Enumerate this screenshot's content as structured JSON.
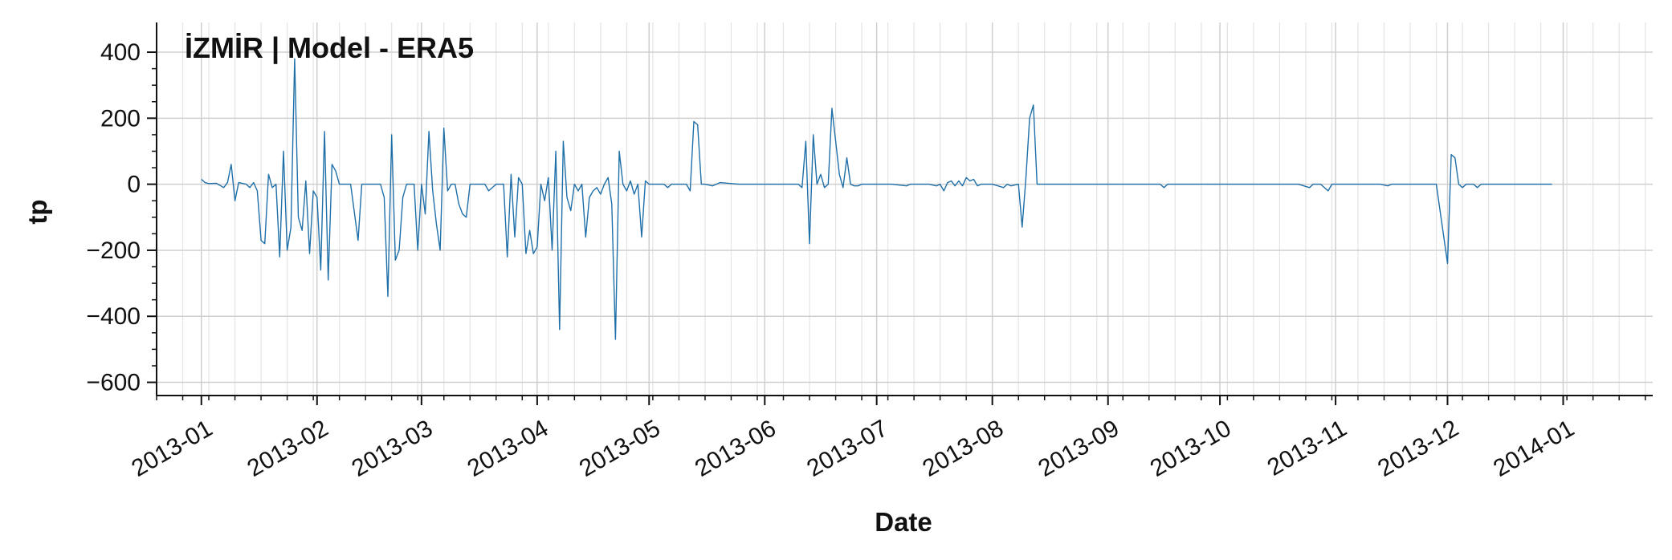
{
  "chart_data": {
    "type": "line",
    "title": "İZMİR | Model - ERA5",
    "xlabel": "Date",
    "ylabel": "tp",
    "x_axis_type": "date",
    "xlim": [
      "2012-12-20",
      "2014-01-25"
    ],
    "ylim": [
      -640,
      490
    ],
    "x_ticks": [
      "2013-01-01",
      "2013-02-01",
      "2013-03-01",
      "2013-04-01",
      "2013-05-01",
      "2013-06-01",
      "2013-07-01",
      "2013-08-01",
      "2013-09-01",
      "2013-10-01",
      "2013-11-01",
      "2013-12-01",
      "2014-01-01"
    ],
    "x_tick_labels": [
      "2013-01",
      "2013-02",
      "2013-03",
      "2013-04",
      "2013-05",
      "2013-06",
      "2013-07",
      "2013-08",
      "2013-09",
      "2013-10",
      "2013-11",
      "2013-12",
      "2014-01"
    ],
    "y_ticks": [
      400,
      200,
      0,
      -200,
      -400,
      -600
    ],
    "y_tick_labels": [
      "400",
      "200",
      "0",
      "−200",
      "−400",
      "−600"
    ],
    "grid": true,
    "series": [
      {
        "color": "#1f6fa8",
        "points": [
          [
            "2013-01-01",
            15
          ],
          [
            "2013-01-02",
            5
          ],
          [
            "2013-01-03",
            2
          ],
          [
            "2013-01-05",
            3
          ],
          [
            "2013-01-07",
            -10
          ],
          [
            "2013-01-08",
            5
          ],
          [
            "2013-01-09",
            60
          ],
          [
            "2013-01-10",
            -50
          ],
          [
            "2013-01-11",
            5
          ],
          [
            "2013-01-13",
            0
          ],
          [
            "2013-01-14",
            -10
          ],
          [
            "2013-01-15",
            5
          ],
          [
            "2013-01-16",
            -20
          ],
          [
            "2013-01-17",
            -170
          ],
          [
            "2013-01-18",
            -180
          ],
          [
            "2013-01-19",
            30
          ],
          [
            "2013-01-20",
            -10
          ],
          [
            "2013-01-21",
            0
          ],
          [
            "2013-01-22",
            -220
          ],
          [
            "2013-01-23",
            100
          ],
          [
            "2013-01-24",
            -200
          ],
          [
            "2013-01-25",
            -130
          ],
          [
            "2013-01-26",
            380
          ],
          [
            "2013-01-27",
            -100
          ],
          [
            "2013-01-28",
            -140
          ],
          [
            "2013-01-29",
            10
          ],
          [
            "2013-01-30",
            -210
          ],
          [
            "2013-01-31",
            -20
          ],
          [
            "2013-02-01",
            -40
          ],
          [
            "2013-02-02",
            -260
          ],
          [
            "2013-02-03",
            160
          ],
          [
            "2013-02-04",
            -290
          ],
          [
            "2013-02-05",
            60
          ],
          [
            "2013-02-06",
            40
          ],
          [
            "2013-02-07",
            0
          ],
          [
            "2013-02-08",
            0
          ],
          [
            "2013-02-10",
            0
          ],
          [
            "2013-02-12",
            -170
          ],
          [
            "2013-02-13",
            0
          ],
          [
            "2013-02-15",
            0
          ],
          [
            "2013-02-18",
            0
          ],
          [
            "2013-02-19",
            -40
          ],
          [
            "2013-02-20",
            -340
          ],
          [
            "2013-02-21",
            150
          ],
          [
            "2013-02-22",
            -230
          ],
          [
            "2013-02-23",
            -200
          ],
          [
            "2013-02-24",
            -40
          ],
          [
            "2013-02-25",
            0
          ],
          [
            "2013-02-26",
            0
          ],
          [
            "2013-02-27",
            0
          ],
          [
            "2013-02-28",
            -200
          ],
          [
            "2013-03-01",
            0
          ],
          [
            "2013-03-02",
            -90
          ],
          [
            "2013-03-03",
            160
          ],
          [
            "2013-03-04",
            -20
          ],
          [
            "2013-03-05",
            -120
          ],
          [
            "2013-03-06",
            -200
          ],
          [
            "2013-03-07",
            170
          ],
          [
            "2013-03-08",
            -20
          ],
          [
            "2013-03-09",
            0
          ],
          [
            "2013-03-10",
            0
          ],
          [
            "2013-03-11",
            -60
          ],
          [
            "2013-03-12",
            -90
          ],
          [
            "2013-03-13",
            -100
          ],
          [
            "2013-03-14",
            0
          ],
          [
            "2013-03-15",
            0
          ],
          [
            "2013-03-17",
            0
          ],
          [
            "2013-03-18",
            0
          ],
          [
            "2013-03-19",
            -20
          ],
          [
            "2013-03-21",
            0
          ],
          [
            "2013-03-23",
            0
          ],
          [
            "2013-03-24",
            -220
          ],
          [
            "2013-03-25",
            30
          ],
          [
            "2013-03-26",
            -160
          ],
          [
            "2013-03-27",
            20
          ],
          [
            "2013-03-28",
            0
          ],
          [
            "2013-03-29",
            -210
          ],
          [
            "2013-03-30",
            -140
          ],
          [
            "2013-03-31",
            -210
          ],
          [
            "2013-04-01",
            -190
          ],
          [
            "2013-04-02",
            0
          ],
          [
            "2013-04-03",
            -50
          ],
          [
            "2013-04-04",
            20
          ],
          [
            "2013-04-05",
            -200
          ],
          [
            "2013-04-06",
            100
          ],
          [
            "2013-04-07",
            -440
          ],
          [
            "2013-04-08",
            130
          ],
          [
            "2013-04-09",
            -40
          ],
          [
            "2013-04-10",
            -80
          ],
          [
            "2013-04-11",
            0
          ],
          [
            "2013-04-12",
            -20
          ],
          [
            "2013-04-13",
            0
          ],
          [
            "2013-04-14",
            -160
          ],
          [
            "2013-04-15",
            -40
          ],
          [
            "2013-04-16",
            -20
          ],
          [
            "2013-04-17",
            -10
          ],
          [
            "2013-04-18",
            -30
          ],
          [
            "2013-04-19",
            0
          ],
          [
            "2013-04-20",
            20
          ],
          [
            "2013-04-21",
            -60
          ],
          [
            "2013-04-22",
            -470
          ],
          [
            "2013-04-23",
            100
          ],
          [
            "2013-04-24",
            0
          ],
          [
            "2013-04-25",
            -20
          ],
          [
            "2013-04-26",
            10
          ],
          [
            "2013-04-27",
            -30
          ],
          [
            "2013-04-28",
            0
          ],
          [
            "2013-04-29",
            -160
          ],
          [
            "2013-04-30",
            10
          ],
          [
            "2013-05-01",
            0
          ],
          [
            "2013-05-03",
            0
          ],
          [
            "2013-05-05",
            0
          ],
          [
            "2013-05-06",
            -10
          ],
          [
            "2013-05-07",
            0
          ],
          [
            "2013-05-08",
            0
          ],
          [
            "2013-05-09",
            0
          ],
          [
            "2013-05-11",
            0
          ],
          [
            "2013-05-12",
            -20
          ],
          [
            "2013-05-13",
            190
          ],
          [
            "2013-05-14",
            180
          ],
          [
            "2013-05-15",
            0
          ],
          [
            "2013-05-16",
            0
          ],
          [
            "2013-05-18",
            -5
          ],
          [
            "2013-05-20",
            5
          ],
          [
            "2013-05-25",
            0
          ],
          [
            "2013-05-30",
            0
          ],
          [
            "2013-06-04",
            0
          ],
          [
            "2013-06-08",
            0
          ],
          [
            "2013-06-10",
            0
          ],
          [
            "2013-06-11",
            -10
          ],
          [
            "2013-06-12",
            130
          ],
          [
            "2013-06-13",
            -180
          ],
          [
            "2013-06-14",
            150
          ],
          [
            "2013-06-15",
            0
          ],
          [
            "2013-06-16",
            30
          ],
          [
            "2013-06-17",
            -10
          ],
          [
            "2013-06-18",
            0
          ],
          [
            "2013-06-19",
            230
          ],
          [
            "2013-06-20",
            130
          ],
          [
            "2013-06-21",
            30
          ],
          [
            "2013-06-22",
            -10
          ],
          [
            "2013-06-23",
            80
          ],
          [
            "2013-06-24",
            0
          ],
          [
            "2013-06-25",
            -5
          ],
          [
            "2013-06-26",
            -5
          ],
          [
            "2013-06-27",
            0
          ],
          [
            "2013-06-30",
            0
          ],
          [
            "2013-07-05",
            0
          ],
          [
            "2013-07-09",
            -5
          ],
          [
            "2013-07-10",
            0
          ],
          [
            "2013-07-15",
            0
          ],
          [
            "2013-07-17",
            -5
          ],
          [
            "2013-07-18",
            0
          ],
          [
            "2013-07-19",
            -20
          ],
          [
            "2013-07-20",
            5
          ],
          [
            "2013-07-21",
            10
          ],
          [
            "2013-07-22",
            -5
          ],
          [
            "2013-07-23",
            10
          ],
          [
            "2013-07-24",
            -5
          ],
          [
            "2013-07-25",
            20
          ],
          [
            "2013-07-26",
            10
          ],
          [
            "2013-07-27",
            15
          ],
          [
            "2013-07-28",
            -5
          ],
          [
            "2013-07-29",
            0
          ],
          [
            "2013-08-01",
            0
          ],
          [
            "2013-08-04",
            -10
          ],
          [
            "2013-08-05",
            0
          ],
          [
            "2013-08-06",
            -5
          ],
          [
            "2013-08-08",
            0
          ],
          [
            "2013-08-09",
            -130
          ],
          [
            "2013-08-10",
            20
          ],
          [
            "2013-08-11",
            200
          ],
          [
            "2013-08-12",
            240
          ],
          [
            "2013-08-13",
            0
          ],
          [
            "2013-08-14",
            0
          ],
          [
            "2013-08-18",
            0
          ],
          [
            "2013-08-25",
            0
          ],
          [
            "2013-09-01",
            0
          ],
          [
            "2013-09-02",
            0
          ],
          [
            "2013-09-05",
            0
          ],
          [
            "2013-09-10",
            0
          ],
          [
            "2013-09-15",
            0
          ],
          [
            "2013-09-16",
            -10
          ],
          [
            "2013-09-17",
            0
          ],
          [
            "2013-09-20",
            0
          ],
          [
            "2013-09-23",
            0
          ],
          [
            "2013-09-25",
            0
          ],
          [
            "2013-09-30",
            0
          ],
          [
            "2013-10-01",
            0
          ],
          [
            "2013-10-05",
            0
          ],
          [
            "2013-10-10",
            0
          ],
          [
            "2013-10-15",
            0
          ],
          [
            "2013-10-20",
            0
          ],
          [
            "2013-10-22",
            0
          ],
          [
            "2013-10-25",
            -10
          ],
          [
            "2013-10-26",
            0
          ],
          [
            "2013-10-28",
            0
          ],
          [
            "2013-10-30",
            -20
          ],
          [
            "2013-10-31",
            0
          ],
          [
            "2013-11-02",
            0
          ],
          [
            "2013-11-05",
            0
          ],
          [
            "2013-11-08",
            0
          ],
          [
            "2013-11-10",
            0
          ],
          [
            "2013-11-13",
            0
          ],
          [
            "2013-11-15",
            -5
          ],
          [
            "2013-11-16",
            0
          ],
          [
            "2013-11-18",
            0
          ],
          [
            "2013-11-20",
            0
          ],
          [
            "2013-11-25",
            0
          ],
          [
            "2013-11-28",
            0
          ],
          [
            "2013-12-01",
            -240
          ],
          [
            "2013-12-02",
            90
          ],
          [
            "2013-12-03",
            80
          ],
          [
            "2013-12-04",
            0
          ],
          [
            "2013-12-05",
            -10
          ],
          [
            "2013-12-06",
            0
          ],
          [
            "2013-12-08",
            0
          ],
          [
            "2013-12-09",
            -10
          ],
          [
            "2013-12-10",
            0
          ],
          [
            "2013-12-13",
            0
          ],
          [
            "2013-12-15",
            0
          ],
          [
            "2013-12-20",
            0
          ],
          [
            "2013-12-28",
            0
          ],
          [
            "2013-12-29",
            0
          ]
        ]
      }
    ]
  }
}
